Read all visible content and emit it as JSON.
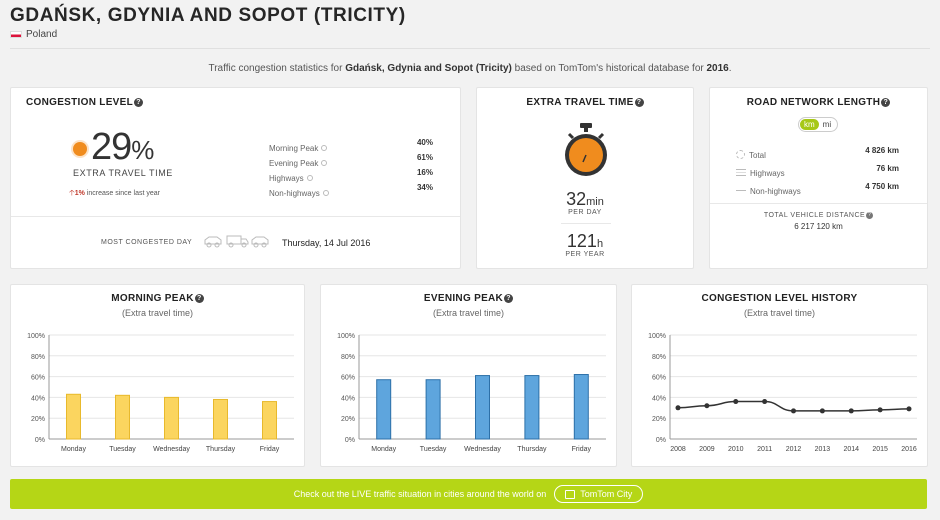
{
  "header": {
    "title": "GDAŃSK, GDYNIA AND SOPOT (TRICITY)",
    "country": "Poland"
  },
  "intro": {
    "prefix": "Traffic congestion statistics for ",
    "city": "Gdańsk, Gdynia and Sopot (Tricity)",
    "middle": " based on TomTom's historical database for ",
    "year": "2016",
    "suffix": "."
  },
  "congestion": {
    "heading": "CONGESTION LEVEL",
    "value": "29",
    "unit": "%",
    "caption": "EXTRA TRAVEL TIME",
    "change": "1%",
    "change_text": " increase since last year",
    "dot_color": "#f08c1e",
    "rows": [
      {
        "label": "Morning Peak",
        "value": "40%"
      },
      {
        "label": "Evening Peak",
        "value": "61%"
      },
      {
        "label": "Highways",
        "value": "16%"
      },
      {
        "label": "Non-highways",
        "value": "34%"
      }
    ],
    "most_congested_label": "MOST CONGESTED DAY",
    "most_congested_value": "Thursday, 14 Jul 2016"
  },
  "extra_time": {
    "heading": "EXTRA TRAVEL TIME",
    "per_day_value": "32",
    "per_day_unit": "min",
    "per_day_label": "PER DAY",
    "per_year_value": "121",
    "per_year_unit": "h",
    "per_year_label": "PER YEAR",
    "accent": "#f08c1e"
  },
  "road_network": {
    "heading": "ROAD NETWORK LENGTH",
    "unit_km": "km",
    "unit_mi": "mi",
    "rows": [
      {
        "label": "Total",
        "value": "4 826 km",
        "icon": "network-icon"
      },
      {
        "label": "Highways",
        "value": "76 km",
        "icon": "highway-icon"
      },
      {
        "label": "Non-highways",
        "value": "4 750 km",
        "icon": "road-icon"
      }
    ],
    "distance_label": "TOTAL VEHICLE DISTANCE",
    "distance_value": "6 217 120 km"
  },
  "morning_chart": {
    "heading": "MORNING PEAK",
    "subtitle": "(Extra travel time)"
  },
  "evening_chart": {
    "heading": "EVENING PEAK",
    "subtitle": "(Extra travel time)"
  },
  "history_chart": {
    "heading": "CONGESTION LEVEL HISTORY",
    "subtitle": "(Extra travel time)"
  },
  "chart_data": [
    {
      "type": "bar",
      "title": "MORNING PEAK",
      "subtitle": "(Extra travel time)",
      "categories": [
        "Monday",
        "Tuesday",
        "Wednesday",
        "Thursday",
        "Friday"
      ],
      "values": [
        43,
        42,
        40,
        38,
        36
      ],
      "ylim": [
        0,
        100
      ],
      "yticks": [
        "0%",
        "20%",
        "40%",
        "60%",
        "80%",
        "100%"
      ],
      "color": "#fbd55f",
      "edge": "#e8b92c",
      "grid": true
    },
    {
      "type": "bar",
      "title": "EVENING PEAK",
      "subtitle": "(Extra travel time)",
      "categories": [
        "Monday",
        "Tuesday",
        "Wednesday",
        "Thursday",
        "Friday"
      ],
      "values": [
        57,
        57,
        61,
        61,
        62
      ],
      "ylim": [
        0,
        100
      ],
      "yticks": [
        "0%",
        "20%",
        "40%",
        "60%",
        "80%",
        "100%"
      ],
      "color": "#5ea5dd",
      "edge": "#2d70a8",
      "grid": true
    },
    {
      "type": "line",
      "title": "CONGESTION LEVEL HISTORY",
      "subtitle": "(Extra travel time)",
      "x": [
        "2008",
        "2009",
        "2010",
        "2011",
        "2012",
        "2013",
        "2014",
        "2015",
        "2016"
      ],
      "values": [
        30,
        32,
        36,
        36,
        27,
        27,
        27,
        28,
        29
      ],
      "ylim": [
        0,
        100
      ],
      "yticks": [
        "0%",
        "20%",
        "40%",
        "60%",
        "80%",
        "100%"
      ],
      "color": "#333333",
      "grid": true
    }
  ],
  "live": {
    "text": "Check out the LIVE traffic situation in cities around the world on",
    "button": "TomTom City"
  }
}
